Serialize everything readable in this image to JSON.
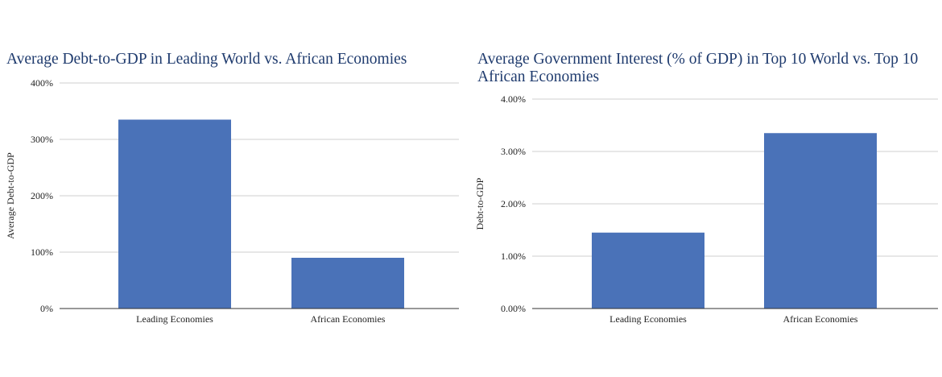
{
  "chart_data": [
    {
      "type": "bar",
      "title": "Average Debt-to-GDP in Leading World vs. African Economies",
      "xlabel": "",
      "ylabel": "Average Debt-to-GDP",
      "categories": [
        "Leading Economies",
        "African Economies"
      ],
      "series": [
        {
          "values": [
            335,
            90
          ]
        }
      ],
      "ylim": [
        0,
        400
      ],
      "yticks": [
        0,
        100,
        200,
        300,
        400
      ],
      "ytick_labels": [
        "0%",
        "100%",
        "200%",
        "300%",
        "400%"
      ],
      "grid": true,
      "bar_color": "#4a72b8"
    },
    {
      "type": "bar",
      "title": "Average Government Interest (% of GDP) in Top 10 World vs. Top 10 African Economies",
      "xlabel": "",
      "ylabel": "Debt-to-GDP",
      "categories": [
        "Leading Economies",
        "African Economies"
      ],
      "series": [
        {
          "values": [
            1.45,
            3.35
          ]
        }
      ],
      "ylim": [
        0,
        4
      ],
      "yticks": [
        0,
        1,
        2,
        3,
        4
      ],
      "ytick_labels": [
        "0.00%",
        "1.00%",
        "2.00%",
        "3.00%",
        "4.00%"
      ],
      "grid": true,
      "bar_color": "#4a72b8"
    }
  ]
}
